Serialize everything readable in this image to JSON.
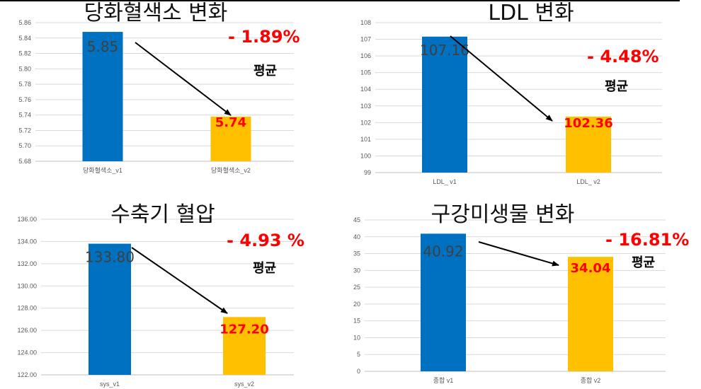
{
  "chart_data": [
    {
      "type": "bar",
      "title": "당화혈색소 변화",
      "categories": [
        "당화혈색소_v1",
        "당화혈색소_v2"
      ],
      "values": [
        5.848,
        5.738
      ],
      "data_labels": [
        "5.85",
        "5.74"
      ],
      "ylim": [
        5.68,
        5.86
      ],
      "yticks": [
        5.68,
        5.7,
        5.72,
        5.74,
        5.76,
        5.78,
        5.8,
        5.82,
        5.84,
        5.86
      ],
      "ytick_decimals": 2,
      "bar_colors": [
        "#0070c0",
        "#ffc000"
      ],
      "label_colors": [
        "#404040",
        "#ff0000"
      ],
      "change_label": "- 1.89%",
      "avg_label": "평균",
      "grid": true
    },
    {
      "type": "bar",
      "title": "LDL 변화",
      "categories": [
        "LDL_ v1",
        "LDL_ v2"
      ],
      "values": [
        107.16,
        102.36
      ],
      "data_labels": [
        "107.16",
        "102.36"
      ],
      "ylim": [
        99,
        108
      ],
      "yticks": [
        99,
        100,
        101,
        102,
        103,
        104,
        105,
        106,
        107,
        108
      ],
      "ytick_decimals": 0,
      "bar_colors": [
        "#0070c0",
        "#ffc000"
      ],
      "label_colors": [
        "#404040",
        "#ff0000"
      ],
      "change_label": "- 4.48%",
      "avg_label": "평균",
      "grid": true
    },
    {
      "type": "bar",
      "title": "수축기 혈압",
      "categories": [
        "sys_v1",
        "sys_v2"
      ],
      "values": [
        133.8,
        127.2
      ],
      "data_labels": [
        "133.80",
        "127.20"
      ],
      "ylim": [
        122,
        136
      ],
      "yticks": [
        122,
        124,
        126,
        128,
        130,
        132,
        134,
        136
      ],
      "ytick_decimals": 2,
      "bar_colors": [
        "#0070c0",
        "#ffc000"
      ],
      "label_colors": [
        "#404040",
        "#ff0000"
      ],
      "change_label": "- 4.93 %",
      "avg_label": "평균",
      "grid": true
    },
    {
      "type": "bar",
      "title": "구강미생물 변화",
      "categories": [
        "종합 v1",
        "종합 v2"
      ],
      "values": [
        40.92,
        34.04
      ],
      "data_labels": [
        "40.92",
        "34.04"
      ],
      "ylim": [
        0,
        45
      ],
      "yticks": [
        0,
        5,
        10,
        15,
        20,
        25,
        30,
        35,
        40,
        45
      ],
      "ytick_decimals": 0,
      "bar_colors": [
        "#0070c0",
        "#ffc000"
      ],
      "label_colors": [
        "#404040",
        "#ff0000"
      ],
      "change_label": "- 16.81%",
      "avg_label": "평균",
      "grid": true
    }
  ]
}
